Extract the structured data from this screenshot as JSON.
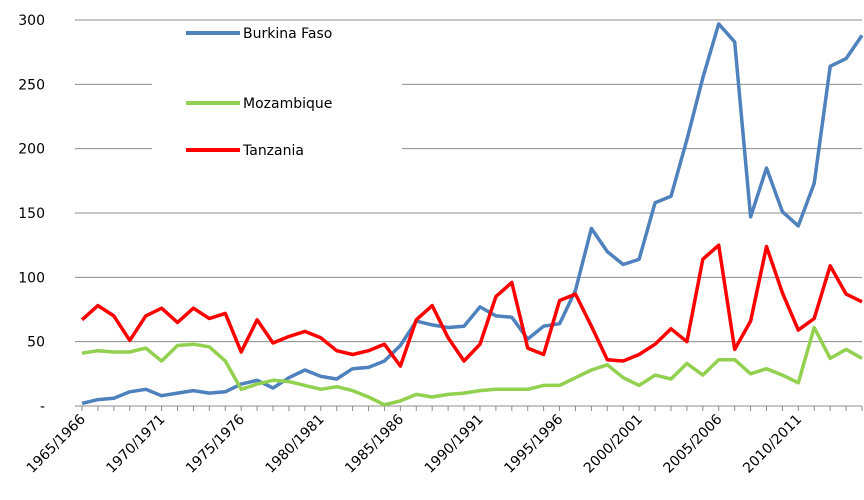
{
  "chart_data": {
    "type": "line",
    "categories": [
      "1965/1966",
      null,
      null,
      null,
      null,
      "1970/1971",
      null,
      null,
      null,
      null,
      "1975/1976",
      null,
      null,
      null,
      null,
      "1980/1981",
      null,
      null,
      null,
      null,
      "1985/1986",
      null,
      null,
      null,
      null,
      "1990/1991",
      null,
      null,
      null,
      null,
      "1995/1996",
      null,
      null,
      null,
      null,
      "2000/2001",
      null,
      null,
      null,
      null,
      "2005/2006",
      null,
      null,
      null,
      null,
      "2010/2011",
      null,
      null,
      null,
      null
    ],
    "series": [
      {
        "name": "Burkina Faso",
        "color": "#4f81bd",
        "values": [
          2,
          5,
          6,
          11,
          13,
          8,
          10,
          12,
          10,
          11,
          17,
          20,
          14,
          22,
          28,
          23,
          21,
          29,
          30,
          35,
          47,
          66,
          63,
          61,
          62,
          77,
          70,
          69,
          52,
          62,
          64,
          90,
          138,
          120,
          110,
          114,
          158,
          163,
          207,
          255,
          297,
          283,
          147,
          185,
          151,
          140,
          173,
          264,
          270,
          288
        ]
      },
      {
        "name": "Mozambique",
        "color": "#92d050",
        "values": [
          41,
          43,
          42,
          42,
          45,
          35,
          47,
          48,
          46,
          35,
          13,
          17,
          20,
          19,
          16,
          13,
          15,
          12,
          7,
          1,
          4,
          9,
          7,
          9,
          10,
          12,
          13,
          13,
          13,
          16,
          16,
          22,
          28,
          32,
          22,
          16,
          24,
          21,
          33,
          24,
          36,
          36,
          25,
          29,
          24,
          18,
          61,
          37,
          44,
          37
        ]
      },
      {
        "name": "Tanzania",
        "color": "#ff0000",
        "values": [
          67,
          78,
          70,
          51,
          70,
          76,
          65,
          76,
          68,
          72,
          42,
          67,
          49,
          54,
          58,
          53,
          43,
          40,
          43,
          48,
          31,
          67,
          78,
          53,
          35,
          48,
          85,
          96,
          45,
          40,
          82,
          87,
          62,
          36,
          35,
          40,
          48,
          60,
          50,
          114,
          125,
          44,
          66,
          124,
          88,
          59,
          68,
          109,
          87,
          81
        ]
      }
    ],
    "ylim": [
      0,
      300
    ],
    "yticks": [
      {
        "value": 0,
        "label": "-"
      },
      50,
      100,
      150,
      200,
      250,
      300
    ],
    "grid": true,
    "legend": "upper-left"
  }
}
